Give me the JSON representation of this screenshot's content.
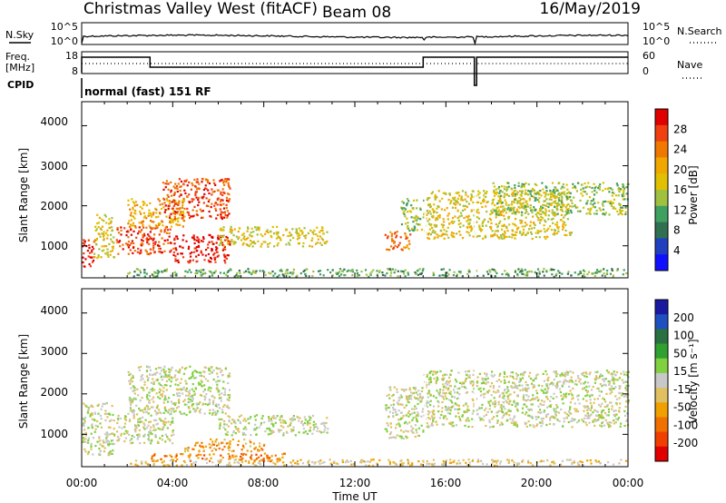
{
  "header": {
    "title": "Christmas Valley West (fitACF)",
    "beam": "Beam 08",
    "date": "16/May/2019"
  },
  "noise_panel": {
    "left_label": "N.Sky",
    "left_ticks": [
      "10^5",
      "10^0"
    ],
    "right_label": "N.Search",
    "right_ticks": [
      "10^5",
      "10^0"
    ]
  },
  "freq_panel": {
    "left_label_line1": "Freq.",
    "left_label_line2": "[MHz]",
    "left_ticks": [
      "18",
      "8"
    ],
    "right_label": "Nave",
    "right_ticks": [
      "60",
      "0"
    ]
  },
  "cpid": {
    "label": "CPID",
    "value": "normal (fast) 151 RF"
  },
  "power_panel": {
    "ylabel": "Slant Range [km]",
    "yticks": [
      "4000",
      "3000",
      "2000",
      "1000"
    ],
    "colorbar_label": "Power [dB]",
    "colorbar_ticks": [
      "28",
      "24",
      "20",
      "16",
      "12",
      "8",
      "4"
    ],
    "colors": [
      "#e00000",
      "#f04010",
      "#f07800",
      "#f0a800",
      "#e0c000",
      "#a0c040",
      "#40a060",
      "#307050",
      "#2040c0",
      "#1010ff"
    ]
  },
  "velocity_panel": {
    "ylabel": "Slant Range [km]",
    "yticks": [
      "4000",
      "3000",
      "2000",
      "1000"
    ],
    "colorbar_label": "Velocity [m s⁻¹]",
    "colorbar_ticks": [
      "200",
      "100",
      "50",
      "15",
      "-15",
      "-50",
      "-100",
      "-200"
    ],
    "colors": [
      "#1a1aa0",
      "#2050c0",
      "#2a7040",
      "#30a030",
      "#80d040",
      "#c8c8c8",
      "#e0c060",
      "#f0a000",
      "#f07000",
      "#f04000",
      "#e00000"
    ]
  },
  "xaxis": {
    "label": "Time UT",
    "ticks": [
      "00:00",
      "04:00",
      "08:00",
      "12:00",
      "16:00",
      "20:00",
      "00:00"
    ]
  },
  "chart_data": [
    {
      "type": "heatmap",
      "name": "Power",
      "x_unit": "hours UT",
      "xlim": [
        0,
        24
      ],
      "ylim": [
        200,
        4600
      ],
      "blobs": [
        {
          "x": [
            0.0,
            0.6
          ],
          "y": [
            500,
            1200
          ],
          "level": 0
        },
        {
          "x": [
            0.5,
            1.4
          ],
          "y": [
            700,
            1800
          ],
          "level": 4
        },
        {
          "x": [
            1.5,
            4.0
          ],
          "y": [
            800,
            1500
          ],
          "level": 1
        },
        {
          "x": [
            4.0,
            6.5
          ],
          "y": [
            600,
            1300
          ],
          "level": 0
        },
        {
          "x": [
            6.0,
            10.8
          ],
          "y": [
            1000,
            1500
          ],
          "level": 4
        },
        {
          "x": [
            2.0,
            4.5
          ],
          "y": [
            1500,
            2200
          ],
          "level": 3
        },
        {
          "x": [
            3.5,
            6.5
          ],
          "y": [
            1700,
            2700
          ],
          "level": 1
        },
        {
          "x": [
            13.3,
            14.4
          ],
          "y": [
            900,
            1400
          ],
          "level": 2
        },
        {
          "x": [
            14.0,
            15.0
          ],
          "y": [
            1400,
            2200
          ],
          "level": 5
        },
        {
          "x": [
            15.0,
            21.5
          ],
          "y": [
            1200,
            2400
          ],
          "level": 4
        },
        {
          "x": [
            18.0,
            24.0
          ],
          "y": [
            1800,
            2600
          ],
          "level": 5
        },
        {
          "x": [
            2.0,
            24.0
          ],
          "y": [
            250,
            450
          ],
          "level": 6
        }
      ]
    },
    {
      "type": "heatmap",
      "name": "Velocity",
      "x_unit": "hours UT",
      "xlim": [
        0,
        24
      ],
      "ylim": [
        200,
        4600
      ],
      "blobs": [
        {
          "x": [
            0.0,
            1.4
          ],
          "y": [
            500,
            1800
          ],
          "level": 5
        },
        {
          "x": [
            1.5,
            4.0
          ],
          "y": [
            800,
            1500
          ],
          "level": 5
        },
        {
          "x": [
            2.0,
            6.5
          ],
          "y": [
            1500,
            2700
          ],
          "level": 5
        },
        {
          "x": [
            6.0,
            10.8
          ],
          "y": [
            1000,
            1500
          ],
          "level": 5
        },
        {
          "x": [
            4.5,
            8.0
          ],
          "y": [
            600,
            900
          ],
          "level": 7
        },
        {
          "x": [
            3.0,
            9.0
          ],
          "y": [
            350,
            550
          ],
          "level": 8
        },
        {
          "x": [
            13.3,
            15.0
          ],
          "y": [
            900,
            2200
          ],
          "level": 5
        },
        {
          "x": [
            15.0,
            24.0
          ],
          "y": [
            1200,
            2600
          ],
          "level": 5
        },
        {
          "x": [
            2.0,
            24.0
          ],
          "y": [
            250,
            400
          ],
          "level": 6
        }
      ]
    }
  ]
}
